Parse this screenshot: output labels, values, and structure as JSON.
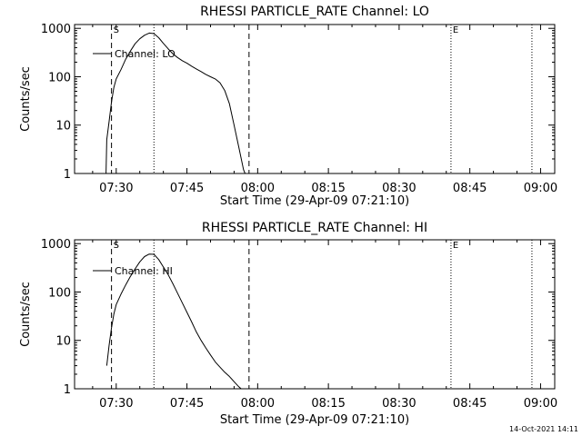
{
  "footer": {
    "timestamp": "14-Oct-2021 14:11"
  },
  "chart_data": [
    {
      "type": "line",
      "title": "RHESSI PARTICLE_RATE Channel: LO",
      "xlabel": "Start Time (29-Apr-09 07:21:10)",
      "ylabel": "Counts/sec",
      "yscale": "log",
      "ylim": [
        1,
        1200
      ],
      "xlim": [
        "07:21:10",
        "09:03:00"
      ],
      "xticks": [
        "07:30",
        "07:45",
        "08:00",
        "08:15",
        "08:30",
        "08:45",
        "09:00"
      ],
      "yticks": [
        "1",
        "10",
        "100",
        "1000"
      ],
      "legend": {
        "position": "top-left",
        "label": "Channel: LO"
      },
      "markers": [
        {
          "time": "07:29:00",
          "style": "dashed",
          "label": "S"
        },
        {
          "time": "07:38:00",
          "style": "dotted",
          "label": ""
        },
        {
          "time": "07:58:10",
          "style": "dashed",
          "label": ""
        },
        {
          "time": "08:41:00",
          "style": "dotted",
          "label": "E"
        },
        {
          "time": "08:58:10",
          "style": "dotted",
          "label": ""
        }
      ],
      "series": [
        {
          "name": "Channel: LO",
          "x": [
            "07:27:50",
            "07:28:00",
            "07:28:30",
            "07:29:00",
            "07:29:30",
            "07:30:00",
            "07:31:00",
            "07:32:00",
            "07:33:00",
            "07:34:00",
            "07:35:00",
            "07:36:00",
            "07:37:00",
            "07:38:00",
            "07:39:00",
            "07:40:00",
            "07:41:00",
            "07:42:00",
            "07:43:00",
            "07:44:00",
            "07:45:00",
            "07:46:00",
            "07:47:00",
            "07:48:00",
            "07:49:00",
            "07:50:00",
            "07:51:00",
            "07:52:00",
            "07:53:00",
            "07:54:00",
            "07:55:00",
            "07:56:00",
            "07:57:00",
            "07:57:20"
          ],
          "y": [
            1,
            5,
            12,
            30,
            60,
            90,
            140,
            230,
            340,
            480,
            610,
            720,
            800,
            780,
            640,
            490,
            380,
            300,
            250,
            215,
            190,
            165,
            145,
            128,
            112,
            100,
            90,
            75,
            52,
            28,
            10,
            3.5,
            1.2,
            1
          ]
        }
      ]
    },
    {
      "type": "line",
      "title": "RHESSI PARTICLE_RATE Channel: HI",
      "xlabel": "Start Time (29-Apr-09 07:21:10)",
      "ylabel": "Counts/sec",
      "yscale": "log",
      "ylim": [
        1,
        1200
      ],
      "xlim": [
        "07:21:10",
        "09:03:00"
      ],
      "xticks": [
        "07:30",
        "07:45",
        "08:00",
        "08:15",
        "08:30",
        "08:45",
        "09:00"
      ],
      "yticks": [
        "1",
        "10",
        "100",
        "1000"
      ],
      "legend": {
        "position": "top-left",
        "label": "Channel: HI"
      },
      "markers": [
        {
          "time": "07:29:00",
          "style": "dashed",
          "label": "S"
        },
        {
          "time": "07:38:00",
          "style": "dotted",
          "label": ""
        },
        {
          "time": "07:58:10",
          "style": "dashed",
          "label": ""
        },
        {
          "time": "08:41:00",
          "style": "dotted",
          "label": "E"
        },
        {
          "time": "08:58:10",
          "style": "dotted",
          "label": ""
        }
      ],
      "series": [
        {
          "name": "Channel: HI",
          "x": [
            "07:28:00",
            "07:28:30",
            "07:29:00",
            "07:29:30",
            "07:30:00",
            "07:31:00",
            "07:32:00",
            "07:33:00",
            "07:34:00",
            "07:35:00",
            "07:36:00",
            "07:37:00",
            "07:38:00",
            "07:39:00",
            "07:40:00",
            "07:41:00",
            "07:42:00",
            "07:43:00",
            "07:44:00",
            "07:45:00",
            "07:46:00",
            "07:47:00",
            "07:48:00",
            "07:49:00",
            "07:50:00",
            "07:51:00",
            "07:52:00",
            "07:53:00",
            "07:54:00",
            "07:55:00",
            "07:56:00",
            "07:56:30"
          ],
          "y": [
            3,
            8,
            18,
            35,
            55,
            90,
            140,
            210,
            300,
            420,
            540,
            610,
            600,
            470,
            330,
            230,
            150,
            95,
            60,
            38,
            24,
            15,
            10,
            7,
            5,
            3.6,
            2.8,
            2.2,
            1.8,
            1.4,
            1.1,
            1
          ]
        }
      ]
    }
  ]
}
